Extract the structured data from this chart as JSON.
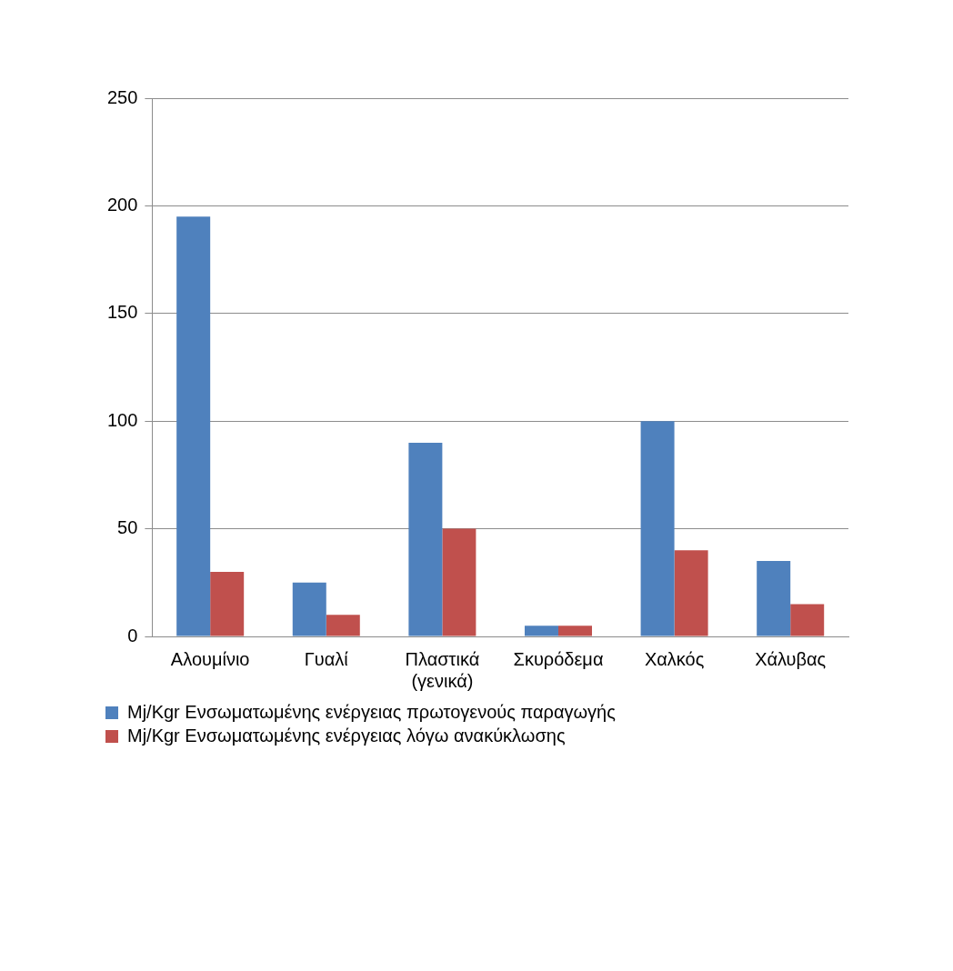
{
  "chart_data": {
    "type": "bar",
    "categories": [
      "Αλουμίνιο",
      "Γυαλί",
      "Πλαστικά (γενικά)",
      "Σκυρόδεμα",
      "Χαλκός",
      "Χάλυβας"
    ],
    "series": [
      {
        "name": "Mj/Kgr Ενσωματωμένης ενέργειας πρωτογενούς παραγωγής",
        "color": "#4f81bd",
        "values": [
          195,
          25,
          90,
          5,
          100,
          35
        ]
      },
      {
        "name": "Mj/Kgr Ενσωματωμένης ενέργειας λόγω ανακύκλωσης",
        "color": "#c0504d",
        "values": [
          30,
          10,
          50,
          5,
          40,
          15
        ]
      }
    ],
    "ylim": [
      0,
      250
    ],
    "yticks": [
      0,
      50,
      100,
      150,
      200,
      250
    ],
    "grid": "y",
    "legend": "bottom"
  }
}
